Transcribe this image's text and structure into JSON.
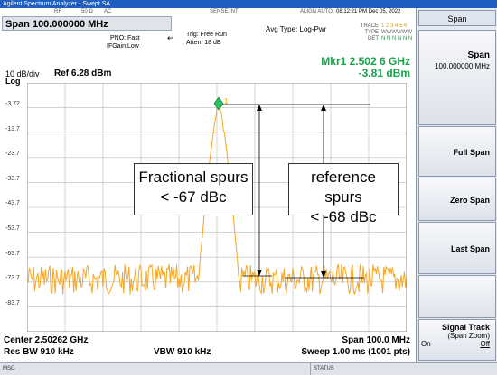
{
  "window_title": "Agilent Spectrum Analyzer - Swept SA",
  "header_row": {
    "rf": "RF",
    "ohm": "50 Ω",
    "ac": "AC",
    "sense": "SENSE:INT",
    "align": "ALIGN AUTO",
    "datetime": "08:12:21 PM Dec 05, 2022"
  },
  "span_title": "Span 100.000000 MHz",
  "pno": "PNO: Fast",
  "ifgain": "IFGain:Low",
  "trig": "Trig: Free Run",
  "atten": "Atten: 18 dB",
  "avg_type": "Avg Type: Log-Pwr",
  "trace_labels": {
    "trace": "TRACE",
    "type": "TYPE",
    "det": "DET"
  },
  "trace_values": {
    "trace": "1 2 3 4 5 6",
    "type": "WWWWWW",
    "det": "N N N N N N"
  },
  "marker_readout": {
    "freq": "Mkr1 2.502 6 GHz",
    "level": "-3.81 dBm"
  },
  "scale": {
    "per_div": "10 dB/div",
    "log": "Log",
    "ref": "Ref 6.28 dBm"
  },
  "y_ticks": [
    "-3.72",
    "-13.7",
    "-23.7",
    "-33.7",
    "-43.7",
    "-53.7",
    "-63.7",
    "-73.7",
    "-83.7"
  ],
  "marker_number": "1",
  "annotations": {
    "left_line1": "Fractional spurs",
    "left_line2": "< -67 dBc",
    "right_line1": "reference spurs",
    "right_line2": "< -68 dBc"
  },
  "footer": {
    "center": "Center 2.50262 GHz",
    "span": "Span 100.0 MHz",
    "res_bw": "Res BW 910 kHz",
    "vbw": "VBW 910 kHz",
    "sweep": "Sweep  1.00 ms (1001 pts)"
  },
  "statusbar": {
    "msg": "MSG",
    "status": "STATUS"
  },
  "softkeys": {
    "header": "Span",
    "span_label": "Span",
    "span_value": "100.000000 MHz",
    "full_span": "Full Span",
    "zero_span": "Zero Span",
    "last_span": "Last Span",
    "signal_track": "Signal Track",
    "signal_track_sub": "(Span Zoom)",
    "on": "On",
    "off": "Off"
  },
  "colors": {
    "trace": "#f5a623",
    "marker": "#22c55e",
    "readout": "#16a34a",
    "titlebar": "#1f5fbf"
  }
}
